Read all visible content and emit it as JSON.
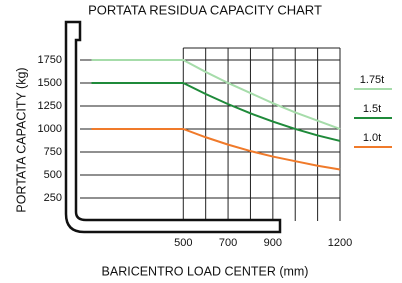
{
  "chart_data": {
    "type": "line",
    "title": "PORTATA RESIDUA  CAPACITY CHART",
    "x_label": "BARICENTRO  LOAD CENTER (mm)",
    "y_label": "PORTATA  CAPACITY (kg)",
    "x": [
      90,
      500,
      600,
      700,
      800,
      900,
      1000,
      1100,
      1200
    ],
    "series": [
      {
        "name": "1.75t",
        "color": "#a6dcaa",
        "values": [
          1750,
          1750,
          1620,
          1500,
          1390,
          1280,
          1180,
          1090,
          1000
        ]
      },
      {
        "name": "1.5t",
        "color": "#1f8a3a",
        "values": [
          1500,
          1500,
          1380,
          1270,
          1170,
          1080,
          1000,
          930,
          870
        ]
      },
      {
        "name": "1.0t",
        "color": "#f07a2a",
        "values": [
          1000,
          1000,
          910,
          830,
          760,
          700,
          650,
          600,
          560
        ]
      }
    ],
    "xlim": [
      90,
      1200
    ],
    "ylim": [
      0,
      1880
    ],
    "xticks": [
      500,
      700,
      900,
      1200
    ],
    "xgrid": [
      500,
      600,
      700,
      800,
      900,
      1000,
      1100,
      1200
    ],
    "yticks": [
      250,
      500,
      750,
      1000,
      1250,
      1500,
      1750
    ],
    "grid": true
  }
}
